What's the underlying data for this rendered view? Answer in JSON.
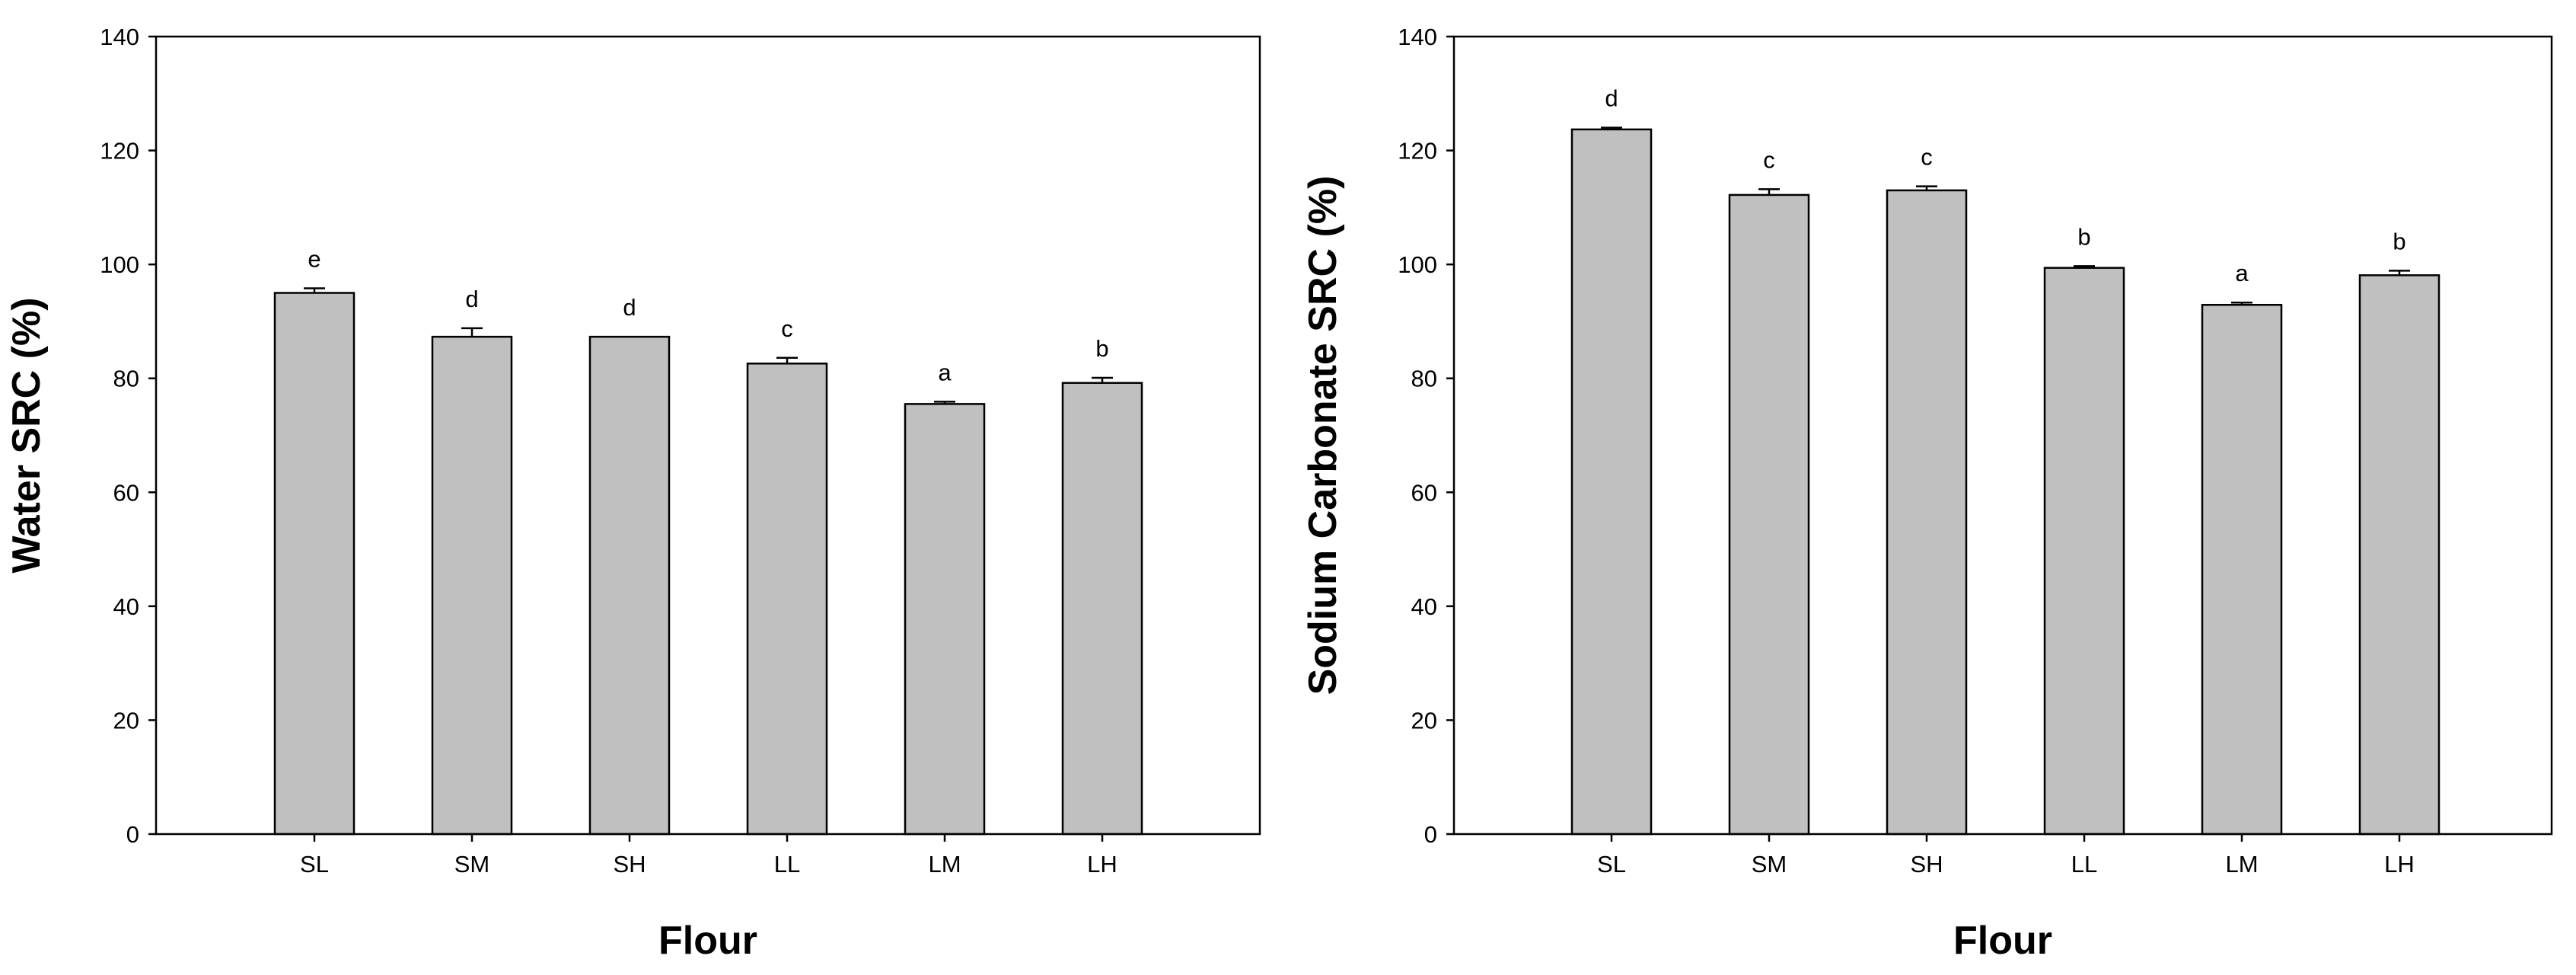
{
  "chart_data": [
    {
      "type": "bar",
      "categories": [
        "SL",
        "SM",
        "SH",
        "LL",
        "LM",
        "LH"
      ],
      "values": [
        95,
        87.3,
        87.3,
        82.6,
        75.5,
        79.2
      ],
      "errors": [
        0.8,
        1.5,
        0,
        1.0,
        0.4,
        0.9
      ],
      "significance": [
        "e",
        "d",
        "d",
        "c",
        "a",
        "b"
      ],
      "xlabel": "Flour",
      "ylabel": "Water SRC (%)",
      "ylim": [
        0,
        140
      ],
      "yticks": [
        0,
        20,
        40,
        60,
        80,
        100,
        120,
        140
      ],
      "bar_color": "#c0c0c0",
      "grid": false
    },
    {
      "type": "bar",
      "categories": [
        "SL",
        "SM",
        "SH",
        "LL",
        "LM",
        "LH"
      ],
      "values": [
        123.7,
        112.2,
        113,
        99.4,
        92.9,
        98.1
      ],
      "errors": [
        0.3,
        1.0,
        0.7,
        0.3,
        0.4,
        0.8
      ],
      "significance": [
        "d",
        "c",
        "c",
        "b",
        "a",
        "b"
      ],
      "xlabel": "Flour",
      "ylabel": "Sodium Carbonate SRC (%)",
      "ylim": [
        0,
        140
      ],
      "yticks": [
        0,
        20,
        40,
        60,
        80,
        100,
        120,
        140
      ],
      "bar_color": "#c0c0c0",
      "grid": false
    }
  ]
}
